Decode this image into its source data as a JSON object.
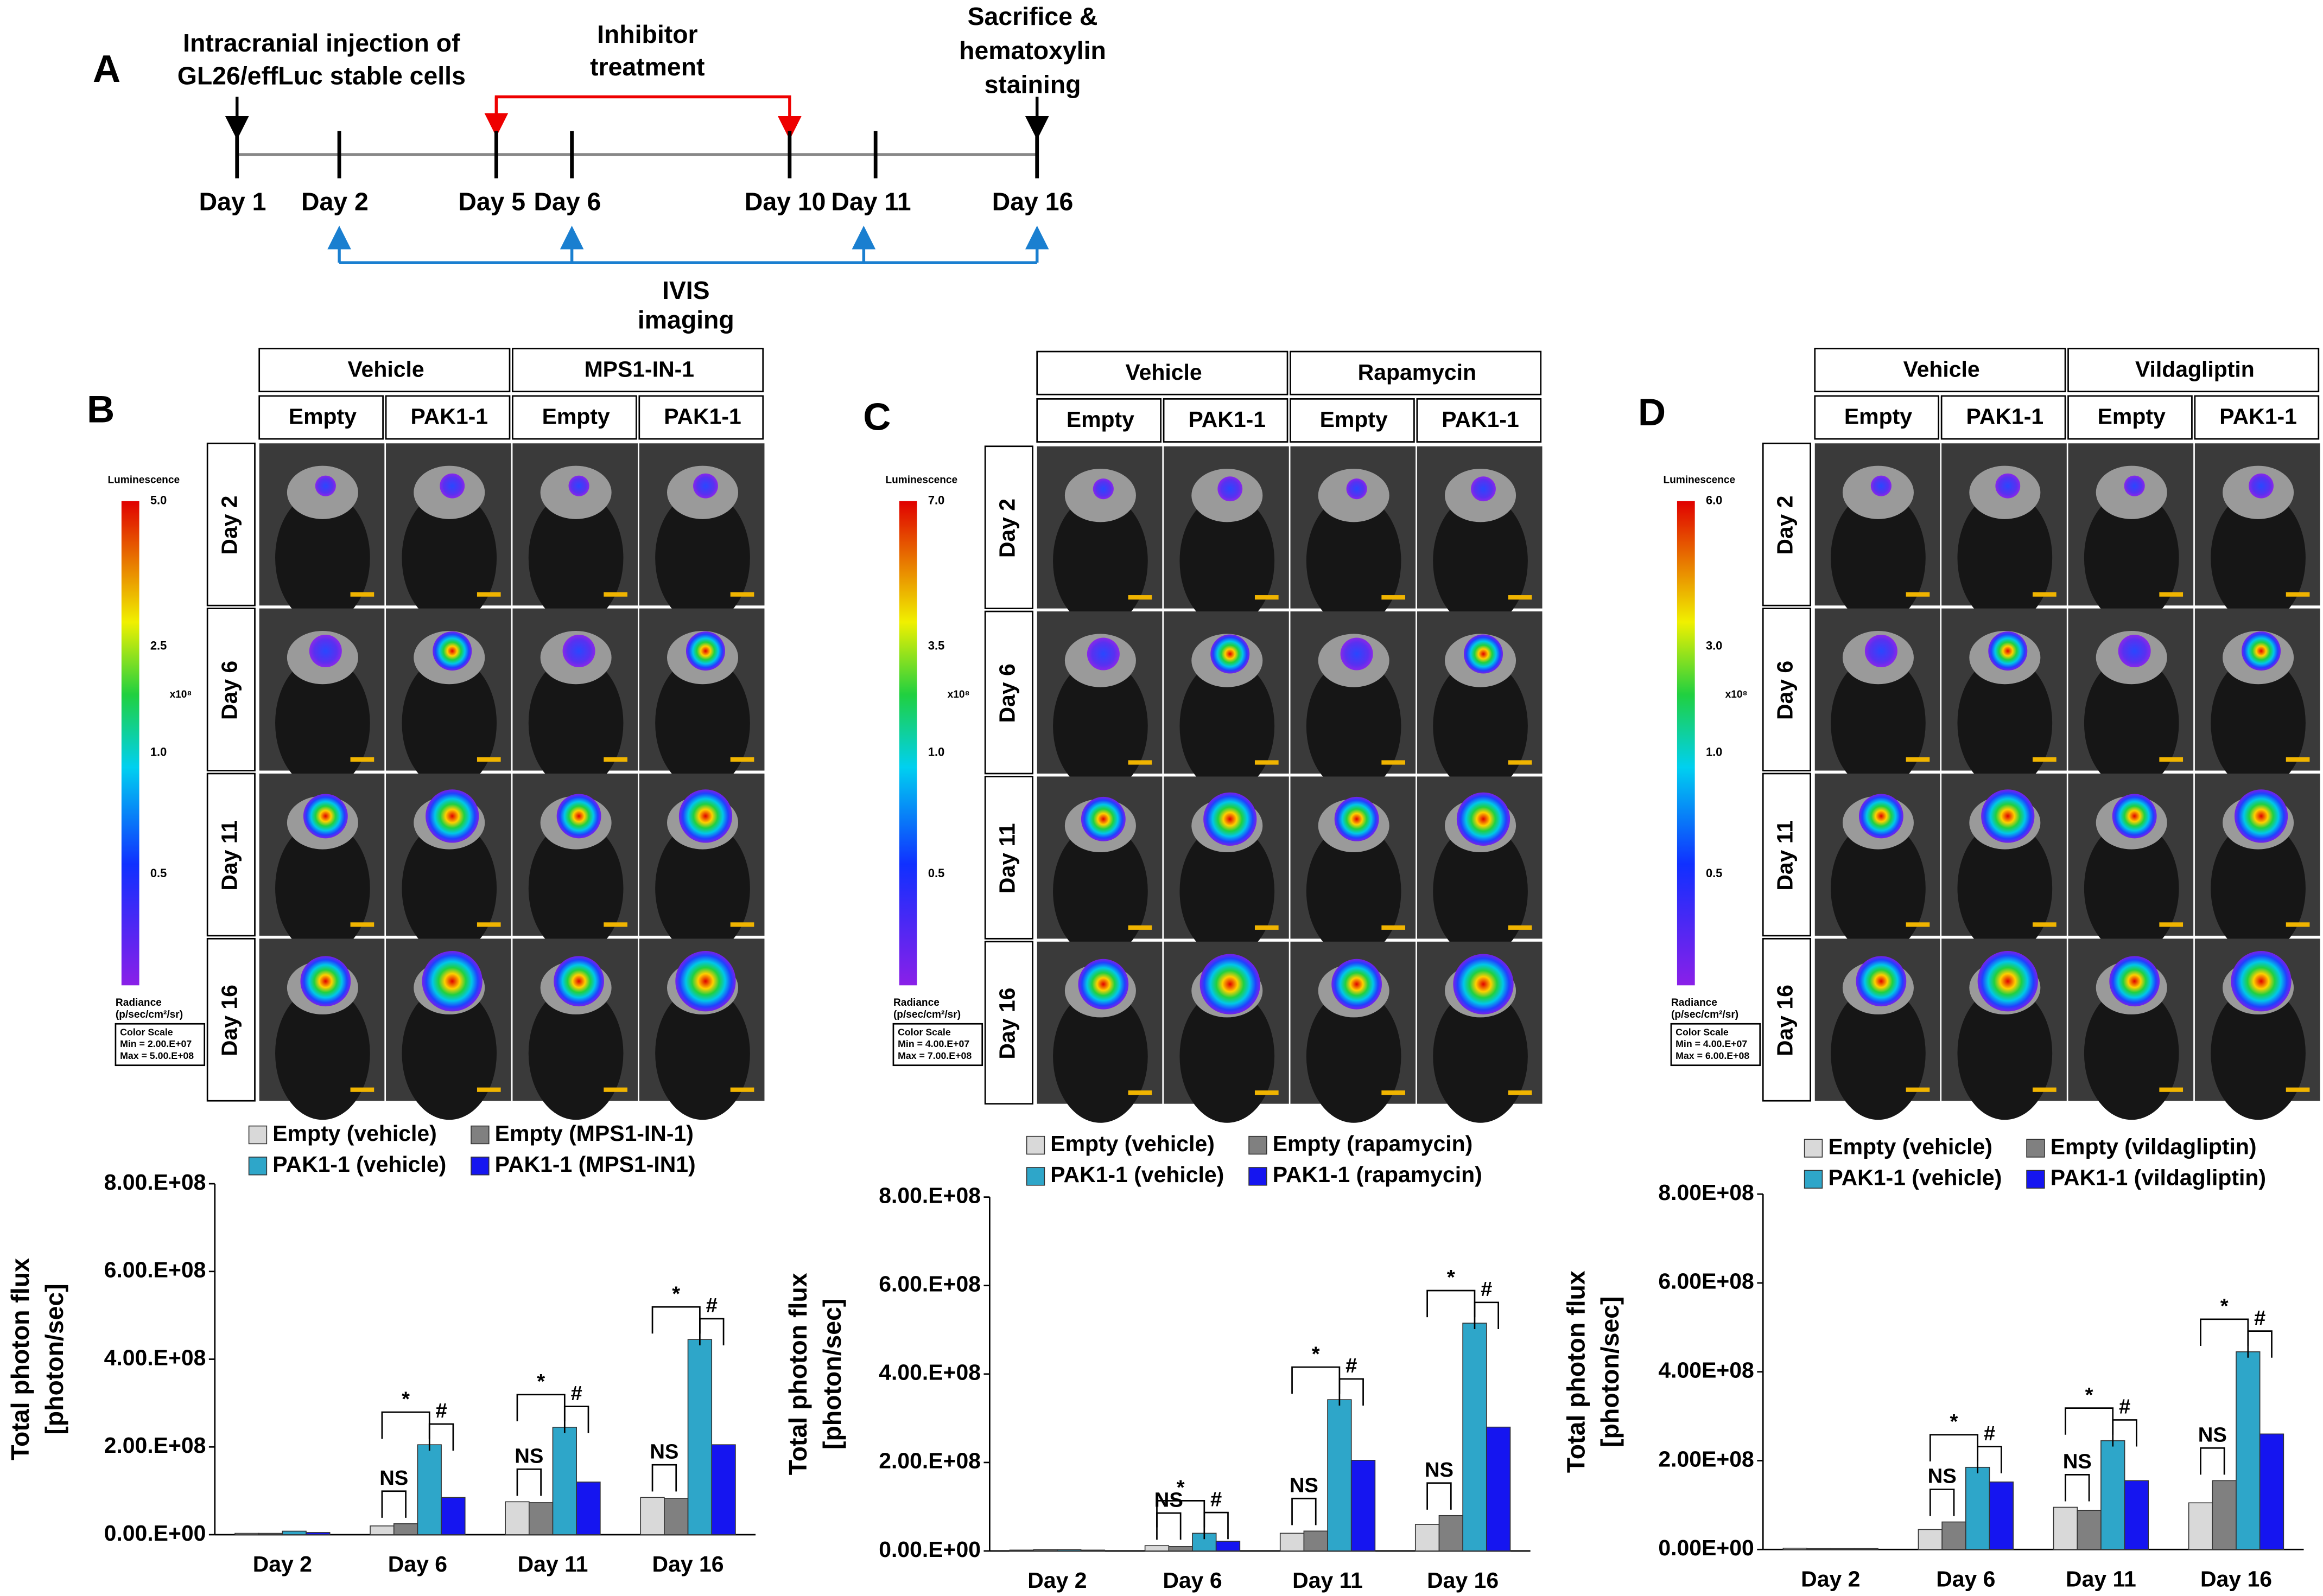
{
  "timeline": {
    "letter": "A",
    "injection": [
      "Intracranial injection of",
      "GL26/effLuc stable cells"
    ],
    "inhibitor": [
      "Inhibitor",
      "treatment"
    ],
    "sacrifice": [
      "Sacrifice &",
      "hematoxylin",
      "staining"
    ],
    "days": [
      "Day 1",
      "Day 2",
      "Day 5",
      "Day 6",
      "Day 10",
      "Day 11",
      "Day 16"
    ],
    "imaging": [
      "IVIS",
      "imaging"
    ]
  },
  "panels": [
    {
      "letter": "B",
      "groups": [
        "Vehicle",
        "MPS1-IN-1"
      ],
      "columns": [
        "Empty",
        "PAK1-1",
        "Empty",
        "PAK1-1"
      ],
      "rows": [
        "Day 2",
        "Day 6",
        "Day 11",
        "Day 16"
      ],
      "colorscale": {
        "title": "Luminescence",
        "ticks": [
          "5.0",
          "2.5",
          "1.0",
          "0.5"
        ],
        "unit": "x10⁸",
        "radiance": [
          "Radiance",
          "(p/sec/cm²/sr)"
        ],
        "box": [
          "Color Scale",
          "Min = 2.00.E+07",
          "Max = 5.00.E+08"
        ]
      }
    },
    {
      "letter": "C",
      "groups": [
        "Vehicle",
        "Rapamycin"
      ],
      "columns": [
        "Empty",
        "PAK1-1",
        "Empty",
        "PAK1-1"
      ],
      "rows": [
        "Day 2",
        "Day 6",
        "Day 11",
        "Day 16"
      ],
      "colorscale": {
        "title": "Luminescence",
        "ticks": [
          "7.0",
          "3.5",
          "1.0",
          "0.5"
        ],
        "unit": "x10⁸",
        "radiance": [
          "Radiance",
          "(p/sec/cm²/sr)"
        ],
        "box": [
          "Color Scale",
          "Min = 4.00.E+07",
          "Max = 7.00.E+08"
        ]
      }
    },
    {
      "letter": "D",
      "groups": [
        "Vehicle",
        "Vildagliptin"
      ],
      "columns": [
        "Empty",
        "PAK1-1",
        "Empty",
        "PAK1-1"
      ],
      "rows": [
        "Day 2",
        "Day 6",
        "Day 11",
        "Day 16"
      ],
      "colorscale": {
        "title": "Luminescence",
        "ticks": [
          "6.0",
          "3.0",
          "1.0",
          "0.5"
        ],
        "unit": "x10⁸",
        "radiance": [
          "Radiance",
          "(p/sec/cm²/sr)"
        ],
        "box": [
          "Color Scale",
          "Min = 4.00.E+07",
          "Max = 6.00.E+08"
        ]
      }
    }
  ],
  "chart_data": [
    {
      "type": "bar",
      "ylabel": [
        "Total photon flux",
        "[photon/sec]"
      ],
      "categories": [
        "Day 2",
        "Day 6",
        "Day 11",
        "Day 16"
      ],
      "series": [
        {
          "name": "Empty (vehicle)",
          "color": "#d9d9d9",
          "values": [
            3000000,
            20000000,
            75000000,
            85000000
          ]
        },
        {
          "name": "Empty (MPS1-IN-1)",
          "color": "#808080",
          "values": [
            3000000,
            25000000,
            73000000,
            83000000
          ]
        },
        {
          "name": "PAK1-1 (vehicle)",
          "color": "#2ea6c9",
          "values": [
            8000000,
            205000000,
            245000000,
            445000000
          ]
        },
        {
          "name": "PAK1-1 (MPS1-IN1)",
          "color": "#1515f0",
          "values": [
            5000000,
            85000000,
            120000000,
            205000000
          ]
        }
      ],
      "annotations": [
        [],
        [
          "NS",
          "*",
          "#"
        ],
        [
          "NS",
          "*",
          "#"
        ],
        [
          "NS",
          "*",
          "#"
        ]
      ],
      "ylim": [
        0,
        800000000
      ],
      "yticks": [
        {
          "value": 0,
          "label": "0.00.E+00"
        },
        {
          "value": 200000000,
          "label": "2.00.E+08"
        },
        {
          "value": 400000000,
          "label": "4.00.E+08"
        },
        {
          "value": 600000000,
          "label": "6.00.E+08"
        },
        {
          "value": 800000000,
          "label": "8.00.E+08"
        }
      ]
    },
    {
      "type": "bar",
      "ylabel": [
        "Total photon flux",
        "[photon/sec]"
      ],
      "categories": [
        "Day 2",
        "Day 6",
        "Day 11",
        "Day 16"
      ],
      "series": [
        {
          "name": "Empty (vehicle)",
          "color": "#d9d9d9",
          "values": [
            2000000,
            12000000,
            40000000,
            60000000
          ]
        },
        {
          "name": "Empty (rapamycin)",
          "color": "#808080",
          "values": [
            3000000,
            10000000,
            45000000,
            80000000
          ]
        },
        {
          "name": "PAK1-1 (vehicle)",
          "color": "#2ea6c9",
          "values": [
            3000000,
            40000000,
            342000000,
            515000000
          ]
        },
        {
          "name": "PAK1-1 (rapamycin)",
          "color": "#1515f0",
          "values": [
            2000000,
            22000000,
            205000000,
            280000000
          ]
        }
      ],
      "annotations": [
        [],
        [
          "NS",
          "*",
          "#"
        ],
        [
          "NS",
          "*",
          "#"
        ],
        [
          "NS",
          "*",
          "#"
        ]
      ],
      "ylim": [
        0,
        800000000
      ],
      "yticks": [
        {
          "value": 0,
          "label": "0.00.E+00"
        },
        {
          "value": 200000000,
          "label": "2.00.E+08"
        },
        {
          "value": 400000000,
          "label": "4.00.E+08"
        },
        {
          "value": 600000000,
          "label": "6.00.E+08"
        },
        {
          "value": 800000000,
          "label": "8.00.E+08"
        }
      ]
    },
    {
      "type": "bar",
      "ylabel": [
        "Total photon flux",
        "[photon/sec]"
      ],
      "categories": [
        "Day 2",
        "Day 6",
        "Day 11",
        "Day 16"
      ],
      "series": [
        {
          "name": "Empty (vehicle)",
          "color": "#d9d9d9",
          "values": [
            3000000,
            45000000,
            95000000,
            105000000
          ]
        },
        {
          "name": "Empty (vildagliptin)",
          "color": "#808080",
          "values": [
            2000000,
            62000000,
            88000000,
            155000000
          ]
        },
        {
          "name": "PAK1-1 (vehicle)",
          "color": "#2ea6c9",
          "values": [
            2000000,
            185000000,
            245000000,
            445000000
          ]
        },
        {
          "name": "PAK1-1 (vildagliptin)",
          "color": "#1515f0",
          "values": [
            2000000,
            152000000,
            155000000,
            260000000
          ]
        }
      ],
      "annotations": [
        [],
        [
          "NS",
          "*",
          "#"
        ],
        [
          "NS",
          "*",
          "#"
        ],
        [
          "NS",
          "*",
          "#"
        ]
      ],
      "ylim": [
        0,
        800000000
      ],
      "yticks": [
        {
          "value": 0,
          "label": "0.00E+00"
        },
        {
          "value": 200000000,
          "label": "2.00E+08"
        },
        {
          "value": 400000000,
          "label": "4.00E+08"
        },
        {
          "value": 600000000,
          "label": "6.00E+08"
        },
        {
          "value": 800000000,
          "label": "8.00E+08"
        }
      ]
    }
  ]
}
